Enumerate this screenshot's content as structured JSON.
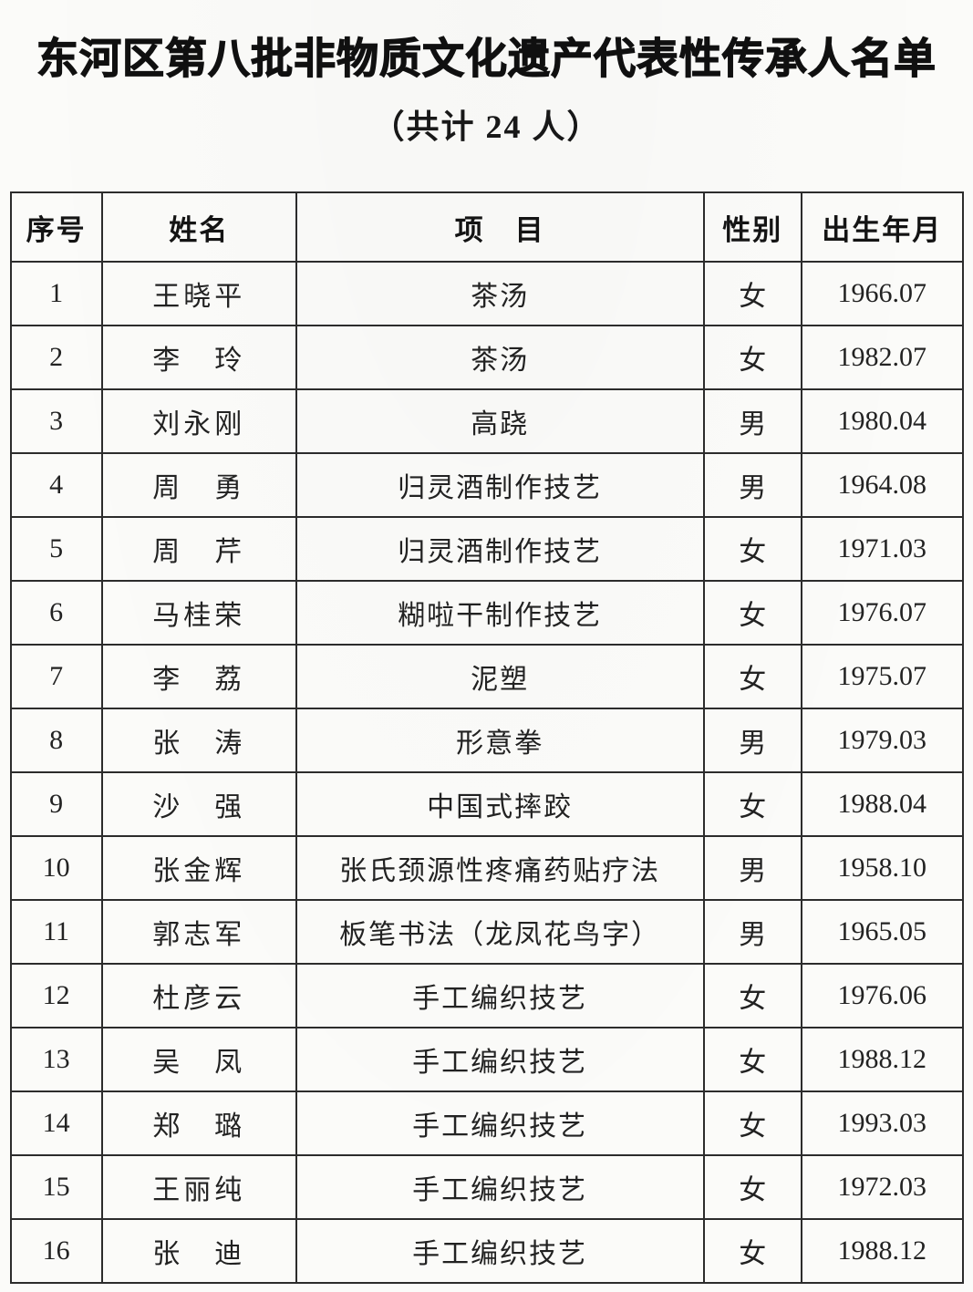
{
  "document": {
    "title": "东河区第八批非物质文化遗产代表性传承人名单",
    "subtitle": "（共计 24 人）"
  },
  "table": {
    "headers": [
      "序号",
      "姓名",
      "项　目",
      "性别",
      "出生年月"
    ],
    "rows": [
      {
        "no": "1",
        "name": "王晓平",
        "project": "茶汤",
        "gender": "女",
        "birth": "1966.07"
      },
      {
        "no": "2",
        "name": "李　玲",
        "project": "茶汤",
        "gender": "女",
        "birth": "1982.07"
      },
      {
        "no": "3",
        "name": "刘永刚",
        "project": "高跷",
        "gender": "男",
        "birth": "1980.04"
      },
      {
        "no": "4",
        "name": "周　勇",
        "project": "归灵酒制作技艺",
        "gender": "男",
        "birth": "1964.08"
      },
      {
        "no": "5",
        "name": "周　芹",
        "project": "归灵酒制作技艺",
        "gender": "女",
        "birth": "1971.03"
      },
      {
        "no": "6",
        "name": "马桂荣",
        "project": "糊啦干制作技艺",
        "gender": "女",
        "birth": "1976.07"
      },
      {
        "no": "7",
        "name": "李　荔",
        "project": "泥塑",
        "gender": "女",
        "birth": "1975.07"
      },
      {
        "no": "8",
        "name": "张　涛",
        "project": "形意拳",
        "gender": "男",
        "birth": "1979.03"
      },
      {
        "no": "9",
        "name": "沙　强",
        "project": "中国式摔跤",
        "gender": "女",
        "birth": "1988.04"
      },
      {
        "no": "10",
        "name": "张金辉",
        "project": "张氏颈源性疼痛药贴疗法",
        "gender": "男",
        "birth": "1958.10"
      },
      {
        "no": "11",
        "name": "郭志军",
        "project": "板笔书法（龙凤花鸟字）",
        "gender": "男",
        "birth": "1965.05"
      },
      {
        "no": "12",
        "name": "杜彦云",
        "project": "手工编织技艺",
        "gender": "女",
        "birth": "1976.06"
      },
      {
        "no": "13",
        "name": "吴　凤",
        "project": "手工编织技艺",
        "gender": "女",
        "birth": "1988.12"
      },
      {
        "no": "14",
        "name": "郑　璐",
        "project": "手工编织技艺",
        "gender": "女",
        "birth": "1993.03"
      },
      {
        "no": "15",
        "name": "王丽纯",
        "project": "手工编织技艺",
        "gender": "女",
        "birth": "1972.03"
      },
      {
        "no": "16",
        "name": "张　迪",
        "project": "手工编织技艺",
        "gender": "女",
        "birth": "1988.12"
      }
    ]
  }
}
